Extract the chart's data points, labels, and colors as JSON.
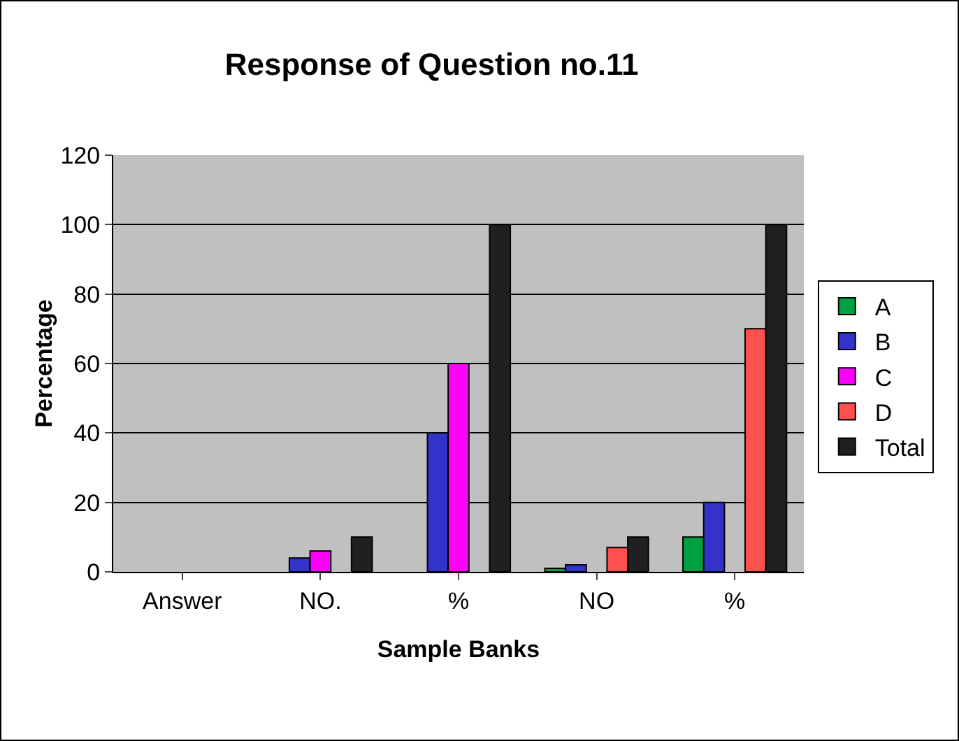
{
  "chart_data": {
    "type": "bar",
    "title": "Response of Question no.11",
    "xlabel": "Sample Banks",
    "ylabel": "Percentage",
    "categories": [
      "Answer",
      "NO.",
      "%",
      "NO",
      "%"
    ],
    "series": [
      {
        "name": "A",
        "color": "#00a040",
        "values": [
          null,
          null,
          null,
          1,
          10
        ]
      },
      {
        "name": "B",
        "color": "#3333cc",
        "values": [
          null,
          4,
          40,
          2,
          20
        ]
      },
      {
        "name": "C",
        "color": "#ff00ff",
        "values": [
          null,
          6,
          60,
          null,
          null
        ]
      },
      {
        "name": "D",
        "color": "#ff5050",
        "values": [
          null,
          null,
          null,
          7,
          70
        ]
      },
      {
        "name": "Total",
        "color": "#202020",
        "values": [
          null,
          10,
          100,
          10,
          100
        ]
      }
    ],
    "ylim": [
      0,
      120
    ],
    "yticks": [
      0,
      20,
      40,
      60,
      80,
      100,
      120
    ],
    "grid": "y",
    "legend": "right"
  }
}
